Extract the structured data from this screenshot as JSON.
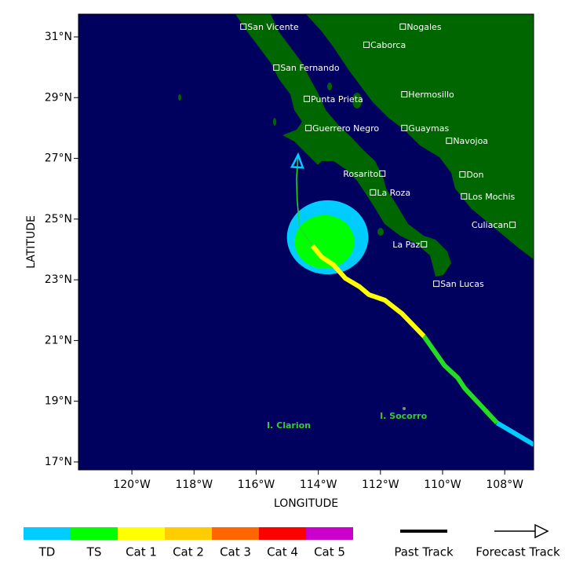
{
  "chart_data": {
    "type": "map",
    "xlabel": "LONGITUDE",
    "ylabel": "LATITUDE",
    "xlim": [
      121.72,
      107.07
    ],
    "ylim": [
      16.74,
      31.75
    ],
    "xticks": [
      {
        "value": 120,
        "label": "120°W"
      },
      {
        "value": 118,
        "label": "118°W"
      },
      {
        "value": 116,
        "label": "116°W"
      },
      {
        "value": 114,
        "label": "114°W"
      },
      {
        "value": 112,
        "label": "112°W"
      },
      {
        "value": 110,
        "label": "110°W"
      },
      {
        "value": 108,
        "label": "108°W"
      }
    ],
    "yticks": [
      {
        "value": 17,
        "label": "17°N"
      },
      {
        "value": 19,
        "label": "19°N"
      },
      {
        "value": 21,
        "label": "21°N"
      },
      {
        "value": 23,
        "label": "23°N"
      },
      {
        "value": 25,
        "label": "25°N"
      },
      {
        "value": 27,
        "label": "27°N"
      },
      {
        "value": 29,
        "label": "29°N"
      },
      {
        "value": 31,
        "label": "31°N"
      }
    ],
    "ocean_color": "#00005f",
    "land_color": "#006600",
    "wind_radii": [
      {
        "color": "#00ccff",
        "lon": 113.7,
        "lat": 24.4,
        "radius_lon": 1.31,
        "radius_lat": 1.22
      },
      {
        "color": "#00ff00",
        "lon": 113.8,
        "lat": 24.25,
        "radius_lon": 0.96,
        "radius_lat": 0.88
      }
    ],
    "past_track": [
      {
        "color": "#00ccff",
        "lon": [
          107.06,
          108.25
        ],
        "lat": [
          17.57,
          18.29
        ]
      },
      {
        "color": "#22dd22",
        "lon": [
          108.25,
          109.29,
          109.51,
          109.94,
          110.6
        ],
        "lat": [
          18.29,
          19.43,
          19.77,
          20.18,
          21.14
        ]
      },
      {
        "color": "#ffff00",
        "lon": [
          110.6,
          111.31,
          111.86,
          112.37,
          112.67,
          113.13,
          113.51,
          113.89,
          114.19
        ],
        "lat": [
          21.14,
          21.89,
          22.33,
          22.51,
          22.77,
          23.05,
          23.49,
          23.75,
          24.12
        ]
      }
    ],
    "forecast_track": {
      "color": "#22dd22",
      "arrow_color": "#00ccff",
      "lon": [
        114.19,
        114.6,
        114.68,
        114.7,
        114.65
      ],
      "lat": [
        24.12,
        24.72,
        25.62,
        26.32,
        27.12
      ]
    },
    "cities": [
      {
        "label": "San Vicente",
        "lon": 116.41,
        "lat": 31.34,
        "side": "right"
      },
      {
        "label": "San Fernando",
        "lon": 115.35,
        "lat": 29.99,
        "side": "right"
      },
      {
        "label": "Caborca",
        "lon": 112.45,
        "lat": 30.74,
        "side": "right"
      },
      {
        "label": "Nogales",
        "lon": 111.28,
        "lat": 31.34,
        "side": "right"
      },
      {
        "label": "Punta Prieta",
        "lon": 114.37,
        "lat": 28.96,
        "side": "right"
      },
      {
        "label": "Hermosillo",
        "lon": 111.23,
        "lat": 29.11,
        "side": "right"
      },
      {
        "label": "Guerrero Negro",
        "lon": 114.32,
        "lat": 28.0,
        "side": "right"
      },
      {
        "label": "Guaymas",
        "lon": 111.23,
        "lat": 28.0,
        "side": "right"
      },
      {
        "label": "Navojoa",
        "lon": 109.79,
        "lat": 27.58,
        "side": "right"
      },
      {
        "label": "Rosarito",
        "lon": 111.94,
        "lat": 26.5,
        "side": "left"
      },
      {
        "label": "Don",
        "lon": 109.36,
        "lat": 26.47,
        "side": "right"
      },
      {
        "label": "La Roza",
        "lon": 112.24,
        "lat": 25.88,
        "side": "right"
      },
      {
        "label": "Los Mochis",
        "lon": 109.31,
        "lat": 25.75,
        "side": "right"
      },
      {
        "label": "Culiacan",
        "lon": 107.75,
        "lat": 24.81,
        "side": "left"
      },
      {
        "label": "La Paz",
        "lon": 110.6,
        "lat": 24.17,
        "side": "left"
      },
      {
        "label": "San Lucas",
        "lon": 110.2,
        "lat": 22.87,
        "side": "right"
      }
    ],
    "islands": [
      {
        "label": "I. Clarion",
        "lon": 114.95,
        "lat": 18.19
      },
      {
        "label": "I. Socorro",
        "lon": 111.26,
        "lat": 18.5
      }
    ],
    "legend": [
      {
        "name": "TD",
        "color": "#00ccff"
      },
      {
        "name": "TS",
        "color": "#00ff00"
      },
      {
        "name": "Cat 1",
        "color": "#ffff00"
      },
      {
        "name": "Cat 2",
        "color": "#ffcc00"
      },
      {
        "name": "Cat 3",
        "color": "#ff6600"
      },
      {
        "name": "Cat 4",
        "color": "#ff0000"
      },
      {
        "name": "Cat 5",
        "color": "#cc00cc"
      }
    ],
    "track_legend": {
      "past": "Past Track",
      "forecast": "Forecast Track"
    }
  }
}
